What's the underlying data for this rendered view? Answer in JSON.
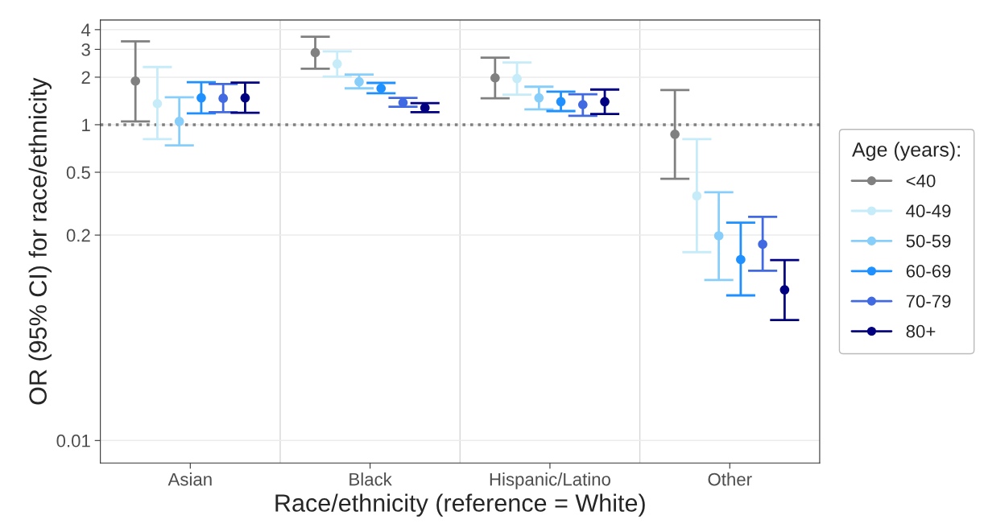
{
  "chart_data": {
    "type": "scatter",
    "xlabel": "Race/ethnicity (reference = White)",
    "ylabel": "OR (95% CI) for race/ethnicity",
    "legend_title": "Age (years):",
    "categories": [
      "Asian",
      "Black",
      "Hispanic/Latino",
      "Other"
    ],
    "log": "y",
    "ylim": [
      0.0072,
      4.6
    ],
    "yticks": [
      0.01,
      0.2,
      0.5,
      1,
      2,
      3,
      4
    ],
    "grid": true,
    "legend": "right",
    "marker": "circle",
    "ref_lines": [
      {
        "axis": "y",
        "value": 1,
        "color": "#808080",
        "line_style": "dotted"
      }
    ],
    "series": [
      {
        "name": "<40",
        "color": "#808080",
        "values": [
          1.89,
          2.86,
          1.98,
          0.87
        ],
        "errors": [
          [
            1.05,
            3.37
          ],
          [
            2.26,
            3.61
          ],
          [
            1.47,
            2.66
          ],
          [
            0.454,
            1.66
          ]
        ]
      },
      {
        "name": "40-49",
        "color": "#c6ecfa",
        "values": [
          1.36,
          2.43,
          1.96,
          0.354
        ],
        "errors": [
          [
            0.81,
            2.32
          ],
          [
            2.02,
            2.91
          ],
          [
            1.55,
            2.48
          ],
          [
            0.156,
            0.81
          ]
        ]
      },
      {
        "name": "50-59",
        "color": "#87cefa",
        "values": [
          1.05,
          1.87,
          1.48,
          0.198
        ],
        "errors": [
          [
            0.74,
            1.49
          ],
          [
            1.7,
            2.08
          ],
          [
            1.25,
            1.74
          ],
          [
            0.104,
            0.373
          ]
        ]
      },
      {
        "name": "60-69",
        "color": "#1e90ff",
        "values": [
          1.48,
          1.7,
          1.4,
          0.14
        ],
        "errors": [
          [
            1.18,
            1.86
          ],
          [
            1.58,
            1.84
          ],
          [
            1.22,
            1.62
          ],
          [
            0.083,
            0.24
          ]
        ]
      },
      {
        "name": "70-79",
        "color": "#4169e1",
        "values": [
          1.47,
          1.38,
          1.34,
          0.175
        ],
        "errors": [
          [
            1.2,
            1.81
          ],
          [
            1.3,
            1.48
          ],
          [
            1.14,
            1.56
          ],
          [
            0.119,
            0.261
          ]
        ]
      },
      {
        "name": "80+",
        "color": "#000080",
        "values": [
          1.48,
          1.28,
          1.4,
          0.09
        ],
        "errors": [
          [
            1.19,
            1.85
          ],
          [
            1.2,
            1.37
          ],
          [
            1.17,
            1.67
          ],
          [
            0.058,
            0.139
          ]
        ]
      }
    ]
  }
}
